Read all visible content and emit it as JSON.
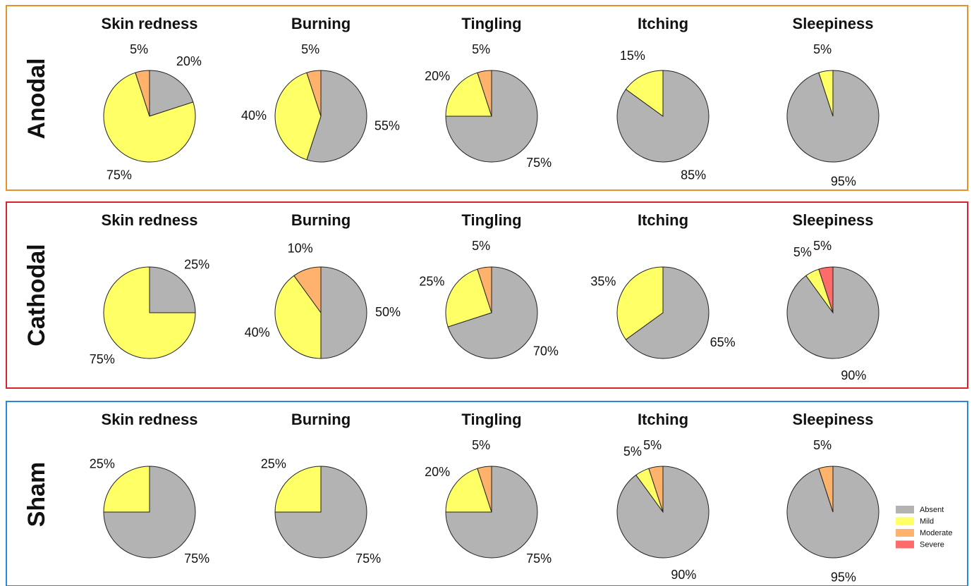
{
  "groups": [
    {
      "label": "Anodal",
      "color": "#e8912a"
    },
    {
      "label": "Cathodal",
      "color": "#d9242b"
    },
    {
      "label": "Sham",
      "color": "#2a86e0"
    }
  ],
  "chart_data": [
    {
      "type": "pie",
      "title": "Skin redness",
      "categories": [
        "Absent",
        "Mild",
        "Moderate",
        "Severe"
      ],
      "colors": [
        "#b3b3b3",
        "#ffff66",
        "#ffb26b",
        "#ff6b6b"
      ],
      "values": [
        20,
        75,
        5,
        0
      ],
      "value_labels": [
        "20%",
        "75%",
        "5%",
        null
      ]
    },
    {
      "type": "pie",
      "title": "Burning",
      "categories": [
        "Absent",
        "Mild",
        "Moderate",
        "Severe"
      ],
      "colors": [
        "#b3b3b3",
        "#ffff66",
        "#ffb26b",
        "#ff6b6b"
      ],
      "values": [
        55,
        40,
        5,
        0
      ],
      "value_labels": [
        "55%",
        "40%",
        "5%",
        null
      ]
    },
    {
      "type": "pie",
      "title": "Tingling",
      "categories": [
        "Absent",
        "Mild",
        "Moderate",
        "Severe"
      ],
      "colors": [
        "#b3b3b3",
        "#ffff66",
        "#ffb26b",
        "#ff6b6b"
      ],
      "values": [
        75,
        20,
        5,
        0
      ],
      "value_labels": [
        "75%",
        "20%",
        "5%",
        null
      ]
    },
    {
      "type": "pie",
      "title": "Itching",
      "categories": [
        "Absent",
        "Mild",
        "Moderate",
        "Severe"
      ],
      "colors": [
        "#b3b3b3",
        "#ffff66",
        "#ffb26b",
        "#ff6b6b"
      ],
      "values": [
        85,
        15,
        0,
        0
      ],
      "value_labels": [
        "85%",
        "15%",
        null,
        null
      ]
    },
    {
      "type": "pie",
      "title": "Sleepiness",
      "categories": [
        "Absent",
        "Mild",
        "Moderate",
        "Severe"
      ],
      "colors": [
        "#b3b3b3",
        "#ffff66",
        "#ffb26b",
        "#ff6b6b"
      ],
      "values": [
        95,
        5,
        0,
        0
      ],
      "value_labels": [
        "95%",
        "5%",
        null,
        null
      ]
    },
    {
      "type": "pie",
      "title": "Skin redness",
      "categories": [
        "Absent",
        "Mild",
        "Moderate",
        "Severe"
      ],
      "colors": [
        "#b3b3b3",
        "#ffff66",
        "#ffb26b",
        "#ff6b6b"
      ],
      "values": [
        25,
        75,
        0,
        0
      ],
      "value_labels": [
        "25%",
        "75%",
        null,
        null
      ]
    },
    {
      "type": "pie",
      "title": "Burning",
      "categories": [
        "Absent",
        "Mild",
        "Moderate",
        "Severe"
      ],
      "colors": [
        "#b3b3b3",
        "#ffff66",
        "#ffb26b",
        "#ff6b6b"
      ],
      "values": [
        50,
        40,
        10,
        0
      ],
      "value_labels": [
        "50%",
        "40%",
        "10%",
        null
      ]
    },
    {
      "type": "pie",
      "title": "Tingling",
      "categories": [
        "Absent",
        "Mild",
        "Moderate",
        "Severe"
      ],
      "colors": [
        "#b3b3b3",
        "#ffff66",
        "#ffb26b",
        "#ff6b6b"
      ],
      "values": [
        70,
        25,
        5,
        0
      ],
      "value_labels": [
        "70%",
        "25%",
        "5%",
        null
      ]
    },
    {
      "type": "pie",
      "title": "Itching",
      "categories": [
        "Absent",
        "Mild",
        "Moderate",
        "Severe"
      ],
      "colors": [
        "#b3b3b3",
        "#ffff66",
        "#ffb26b",
        "#ff6b6b"
      ],
      "values": [
        65,
        35,
        0,
        0
      ],
      "value_labels": [
        "65%",
        "35%",
        null,
        null
      ]
    },
    {
      "type": "pie",
      "title": "Sleepiness",
      "categories": [
        "Absent",
        "Mild",
        "Moderate",
        "Severe"
      ],
      "colors": [
        "#b3b3b3",
        "#ffff66",
        "#ffb26b",
        "#ff6b6b"
      ],
      "values": [
        90,
        5,
        0,
        5
      ],
      "value_labels": [
        "90%",
        "5%",
        null,
        "5%"
      ]
    },
    {
      "type": "pie",
      "title": "Skin redness",
      "categories": [
        "Absent",
        "Mild",
        "Moderate",
        "Severe"
      ],
      "colors": [
        "#b3b3b3",
        "#ffff66",
        "#ffb26b",
        "#ff6b6b"
      ],
      "values": [
        75,
        25,
        0,
        0
      ],
      "value_labels": [
        "75%",
        "25%",
        null,
        null
      ]
    },
    {
      "type": "pie",
      "title": "Burning",
      "categories": [
        "Absent",
        "Mild",
        "Moderate",
        "Severe"
      ],
      "colors": [
        "#b3b3b3",
        "#ffff66",
        "#ffb26b",
        "#ff6b6b"
      ],
      "values": [
        75,
        25,
        0,
        0
      ],
      "value_labels": [
        "75%",
        "25%",
        null,
        null
      ]
    },
    {
      "type": "pie",
      "title": "Tingling",
      "categories": [
        "Absent",
        "Mild",
        "Moderate",
        "Severe"
      ],
      "colors": [
        "#b3b3b3",
        "#ffff66",
        "#ffb26b",
        "#ff6b6b"
      ],
      "values": [
        75,
        20,
        5,
        0
      ],
      "value_labels": [
        "75%",
        "20%",
        "5%",
        null
      ]
    },
    {
      "type": "pie",
      "title": "Itching",
      "categories": [
        "Absent",
        "Mild",
        "Moderate",
        "Severe"
      ],
      "colors": [
        "#b3b3b3",
        "#ffff66",
        "#ffb26b",
        "#ff6b6b"
      ],
      "values": [
        90,
        5,
        5,
        0
      ],
      "value_labels": [
        "90%",
        "5%",
        "5%",
        null
      ]
    },
    {
      "type": "pie",
      "title": "Sleepiness",
      "categories": [
        "Absent",
        "Mild",
        "Moderate",
        "Severe"
      ],
      "colors": [
        "#b3b3b3",
        "#ffff66",
        "#ffb26b",
        "#ff6b6b"
      ],
      "values": [
        95,
        0,
        5,
        0
      ],
      "value_labels": [
        "95%",
        null,
        "5%",
        null
      ]
    }
  ]
}
